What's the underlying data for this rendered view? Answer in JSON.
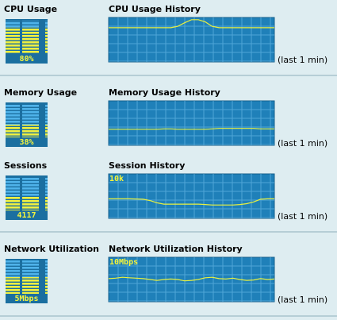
{
  "panels": [
    {
      "title": "CPU Usage",
      "history_title": "CPU Usage History",
      "gauge": {
        "value": 80,
        "label": "80%"
      },
      "ylim": [
        0,
        100
      ],
      "history": [
        77,
        77,
        77,
        77,
        77,
        77,
        77,
        77,
        77,
        77,
        80,
        88,
        95,
        95,
        90,
        80,
        77,
        77,
        77,
        77,
        77,
        77,
        77,
        77,
        77
      ],
      "period": "(last 1 min)"
    },
    {
      "title": "Memory Usage",
      "history_title": "Memory Usage History",
      "gauge": {
        "value": 38,
        "label": "38%"
      },
      "ylim": [
        0,
        100
      ],
      "history": [
        36,
        36,
        36,
        36,
        36,
        36,
        36,
        36,
        37,
        37,
        36,
        36,
        36,
        36,
        36,
        37,
        38,
        38,
        38,
        38,
        38,
        38,
        37,
        37,
        37
      ],
      "period": "(last 1 min)"
    },
    {
      "title": "Sessions",
      "history_title": "Session History",
      "gauge": 4117,
      "scale_label": "10k",
      "ylim": [
        0,
        10000
      ],
      "history": [
        4400,
        4400,
        4400,
        4400,
        4350,
        4300,
        4000,
        3500,
        3200,
        3200,
        3200,
        3200,
        3200,
        3200,
        3100,
        3000,
        3000,
        3000,
        3000,
        3100,
        3300,
        3700,
        4300,
        4400,
        4400
      ],
      "period": "(last 1 min)"
    },
    {
      "title": "Network Utilization",
      "history_title": "Network Utilization History",
      "gauge": {
        "value": 5,
        "label": "5Mbps"
      },
      "scale_label": "10Mbps",
      "ylim": [
        0,
        10
      ],
      "history": [
        5.2,
        5.3,
        5.5,
        5.4,
        5.3,
        5.2,
        5,
        4.8,
        5,
        5.1,
        5,
        4.7,
        4.8,
        5,
        5.4,
        5.5,
        5.2,
        5.1,
        5.3,
        5,
        4.8,
        4.9,
        5.2,
        5,
        5.1
      ],
      "period": "(last 1 min)"
    }
  ]
}
